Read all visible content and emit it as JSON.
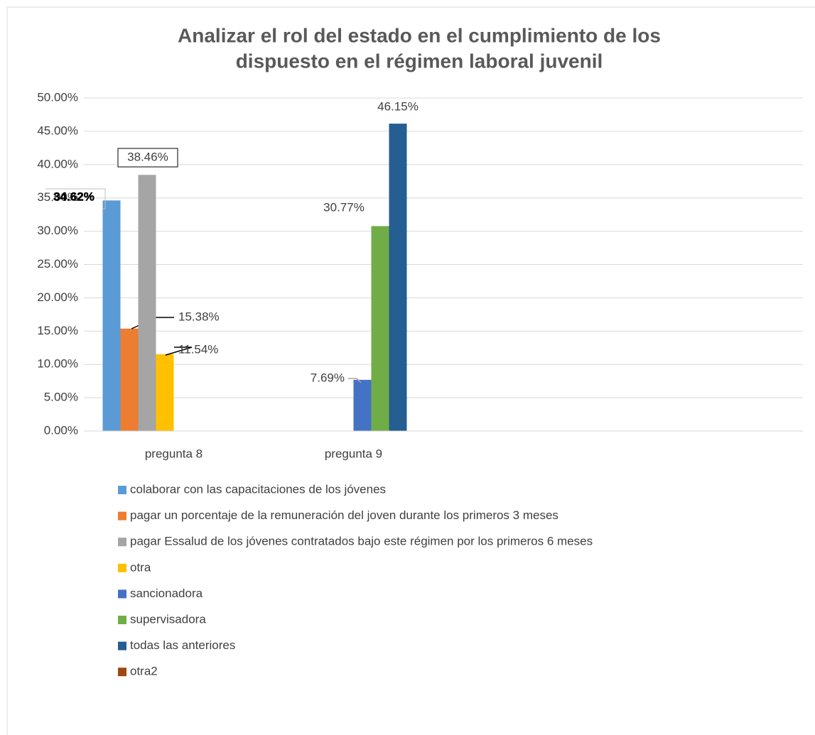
{
  "chart_data": {
    "type": "bar",
    "title": [
      "Analizar el rol del estado en el cumplimiento de los",
      "dispuesto en el régimen laboral juvenil"
    ],
    "categories": [
      "pregunta 8",
      "pregunta 9",
      null,
      null
    ],
    "series": [
      {
        "name": "colaborar con las capacitaciones de los jóvenes",
        "color": "#5b9bd5",
        "values": [
          34.62,
          null,
          null,
          null
        ],
        "value_labels": [
          "34.62%",
          null,
          null,
          null
        ]
      },
      {
        "name": "pagar un porcentaje de la remuneración del joven durante los primeros 3 meses",
        "color": "#ed7d31",
        "values": [
          15.38,
          null,
          null,
          null
        ],
        "value_labels": [
          "15.38%",
          null,
          null,
          null
        ]
      },
      {
        "name": "pagar Essalud de los jóvenes contratados bajo este régimen por los primeros 6 meses",
        "color": "#a5a5a5",
        "values": [
          38.46,
          null,
          null,
          null
        ],
        "value_labels": [
          "38.46%",
          null,
          null,
          null
        ]
      },
      {
        "name": "otra",
        "color": "#ffc000",
        "values": [
          11.54,
          null,
          null,
          null
        ],
        "value_labels": [
          "11.54%",
          null,
          null,
          null
        ]
      },
      {
        "name": "sancionadora",
        "color": "#4472c4",
        "values": [
          null,
          7.69,
          null,
          null
        ],
        "value_labels": [
          null,
          "7.69%",
          null,
          null
        ]
      },
      {
        "name": "supervisadora",
        "color": "#70ad47",
        "values": [
          null,
          30.77,
          null,
          null
        ],
        "value_labels": [
          null,
          "30.77%",
          null,
          null
        ]
      },
      {
        "name": "todas las anteriores",
        "color": "#255e91",
        "values": [
          null,
          46.15,
          null,
          null
        ],
        "value_labels": [
          null,
          "46.15%",
          null,
          null
        ]
      },
      {
        "name": "otra2",
        "color": "#9e480e",
        "values": [
          null,
          null,
          null,
          null
        ]
      }
    ],
    "ylim": [
      0,
      50
    ],
    "yticks": [
      {
        "value": 0,
        "label": "0.00%"
      },
      {
        "value": 5,
        "label": "5.00%"
      },
      {
        "value": 10,
        "label": "10.00%"
      },
      {
        "value": 15,
        "label": "15.00%"
      },
      {
        "value": 20,
        "label": "20.00%"
      },
      {
        "value": 25,
        "label": "25.00%"
      },
      {
        "value": 30,
        "label": "30.00%"
      },
      {
        "value": 35,
        "label": "35.00%"
      },
      {
        "value": 40,
        "label": "40.00%"
      },
      {
        "value": 45,
        "label": "45.00%"
      },
      {
        "value": 50,
        "label": "50.00%"
      }
    ],
    "grid": true,
    "legend": "bottom"
  }
}
